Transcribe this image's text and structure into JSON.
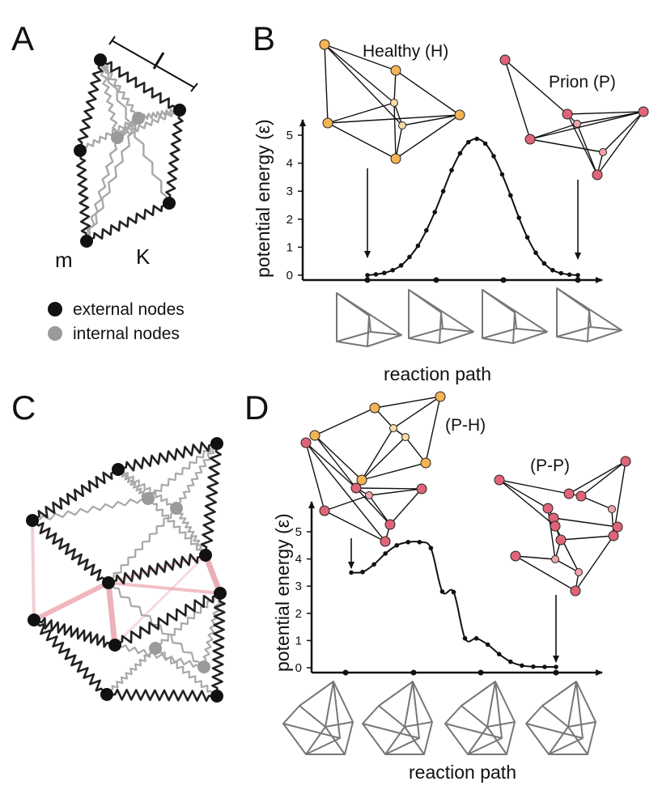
{
  "panels": {
    "a": {
      "label": "A",
      "mass_label": "m",
      "spring_label": "K",
      "legend": [
        {
          "label": "external nodes",
          "color": "#111111",
          "icon": "black-dot"
        },
        {
          "label": "internal nodes",
          "color": "#9a9a9a",
          "icon": "gray-dot"
        }
      ]
    },
    "b": {
      "label": "B",
      "state_left": "Healthy (H)",
      "state_right": "Prion (P)",
      "healthy_color": "#f4b455",
      "prion_color": "#e06478"
    },
    "c": {
      "label": "C",
      "bond_color": "#e9a5ad"
    },
    "d": {
      "label": "D",
      "state_left": "(P-H)",
      "state_right": "(P-P)"
    }
  },
  "chart_data": [
    {
      "type": "line",
      "panel": "B",
      "ylabel": "potential energy (ε)",
      "xlabel": "reaction path",
      "ylim": [
        0,
        5
      ],
      "yticks": [
        "0",
        "1",
        "2",
        "3",
        "4",
        "5"
      ],
      "x": [
        0,
        1,
        2,
        3,
        4,
        5,
        6,
        7,
        8,
        9,
        10,
        11,
        12,
        13,
        14,
        15,
        16,
        17,
        18,
        19,
        20,
        21,
        22,
        23,
        24,
        25
      ],
      "values": [
        0.0,
        0.03,
        0.08,
        0.18,
        0.35,
        0.65,
        1.05,
        1.6,
        2.25,
        3.0,
        3.75,
        4.35,
        4.75,
        4.87,
        4.7,
        4.25,
        3.6,
        2.85,
        2.05,
        1.35,
        0.8,
        0.42,
        0.18,
        0.07,
        0.02,
        0.0
      ],
      "grid": false
    },
    {
      "type": "line",
      "panel": "D",
      "ylabel": "potential energy (ε)",
      "xlabel": "reaction path",
      "ylim": [
        0,
        5
      ],
      "yticks": [
        "0",
        "1",
        "2",
        "3",
        "4",
        "5"
      ],
      "x": [
        0,
        1,
        2,
        3,
        4,
        5,
        6,
        7,
        8,
        9,
        10,
        11,
        12,
        13,
        14,
        15,
        16,
        17,
        18
      ],
      "values": [
        3.5,
        3.52,
        3.8,
        4.2,
        4.5,
        4.62,
        4.62,
        4.4,
        2.8,
        2.78,
        1.08,
        1.08,
        0.85,
        0.5,
        0.22,
        0.08,
        0.04,
        0.03,
        0.03
      ],
      "grid": false
    }
  ]
}
